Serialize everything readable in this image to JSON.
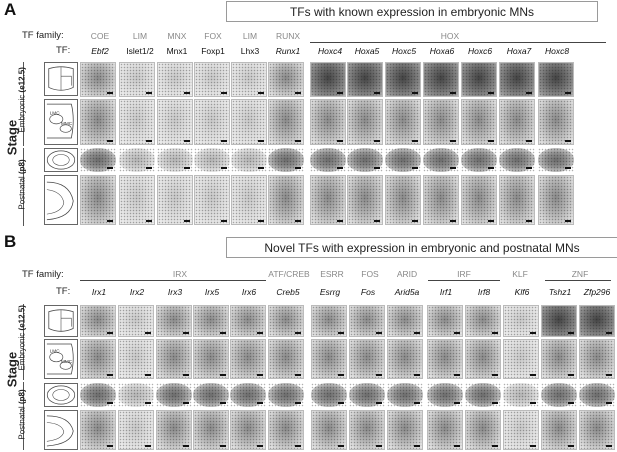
{
  "panel_a": {
    "letter": "A",
    "title": "TFs with known expression in embryonic MNs",
    "tf_family_label": "TF family:",
    "tf_label": "TF:",
    "families": [
      "COE",
      "LIM",
      "MNX",
      "FOX",
      "LIM",
      "RUNX",
      "HOX"
    ],
    "genes": [
      "Ebf2",
      "Islet1/2",
      "Mnx1",
      "Foxp1",
      "Lhx3",
      "Runx1",
      "Hoxc4",
      "Hoxa5",
      "Hoxc5",
      "Hoxa6",
      "Hoxc6",
      "Hoxa7",
      "Hoxc8"
    ],
    "stage_label": "Stage",
    "embryonic_label": "Embryonic",
    "embryonic_age": "(e12.5)",
    "postnatal_label": "Postnatal",
    "postnatal_age": "(p8)",
    "schematic_lmc": "LMC",
    "schematic_mmc": "MMC"
  },
  "panel_b": {
    "letter": "B",
    "title": "Novel TFs with expression in embryonic and postnatal MNs",
    "tf_family_label": "TF family:",
    "tf_label": "TF:",
    "families": [
      "IRX",
      "ATF/CREB",
      "ESRR",
      "FOS",
      "ARID",
      "IRF",
      "KLF",
      "ZNF"
    ],
    "genes": [
      "Irx1",
      "Irx2",
      "Irx3",
      "Irx5",
      "Irx6",
      "Creb5",
      "Esrrg",
      "Fos",
      "Arid5a",
      "Irf1",
      "Irf8",
      "Klf6",
      "Tshz1",
      "Zfp296"
    ],
    "stage_label": "Stage",
    "embryonic_label": "Embryonic",
    "embryonic_age": "(e12.5)",
    "postnatal_label": "Postnatal",
    "postnatal_age": "(p8)",
    "schematic_lmc": "LMC",
    "schematic_mmc": "MMC"
  }
}
